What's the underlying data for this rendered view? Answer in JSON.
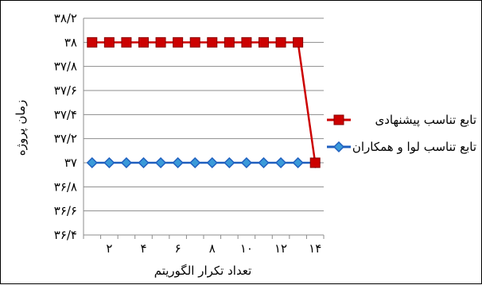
{
  "chart_data": {
    "type": "line",
    "title": "",
    "xlabel": "تعداد تکرار الگوریتم",
    "ylabel": "زمان پروژه",
    "x": [
      1,
      2,
      3,
      4,
      5,
      6,
      7,
      8,
      9,
      10,
      11,
      12,
      13,
      14
    ],
    "xtick_values": [
      2,
      4,
      6,
      8,
      10,
      12,
      14
    ],
    "xtick_labels": [
      "۲",
      "۴",
      "۶",
      "۸",
      "۱۰",
      "۱۲",
      "۱۴"
    ],
    "ylim": [
      36.4,
      38.2
    ],
    "ytick_values": [
      36.4,
      36.6,
      36.8,
      37.0,
      37.2,
      37.4,
      37.6,
      37.8,
      38.0,
      38.2
    ],
    "ytick_labels": [
      "۳۶/۴",
      "۳۶/۶",
      "۳۶/۸",
      "۳۷",
      "۳۷/۲",
      "۳۷/۴",
      "۳۷/۶",
      "۳۷/۸",
      "۳۸",
      "۳۸/۲"
    ],
    "grid": true,
    "legend_position": "right",
    "series": [
      {
        "name": "تابع تناسب پیشنهادی",
        "color": "#cc0000",
        "marker": "square",
        "values": [
          38,
          38,
          38,
          38,
          38,
          38,
          38,
          38,
          38,
          38,
          38,
          38,
          38,
          37
        ]
      },
      {
        "name": "تابع تناسب لوا و همکاران",
        "color": "#1f5fbf",
        "marker": "diamond",
        "values": [
          37,
          37,
          37,
          37,
          37,
          37,
          37,
          37,
          37,
          37,
          37,
          37,
          37,
          37
        ]
      }
    ]
  }
}
